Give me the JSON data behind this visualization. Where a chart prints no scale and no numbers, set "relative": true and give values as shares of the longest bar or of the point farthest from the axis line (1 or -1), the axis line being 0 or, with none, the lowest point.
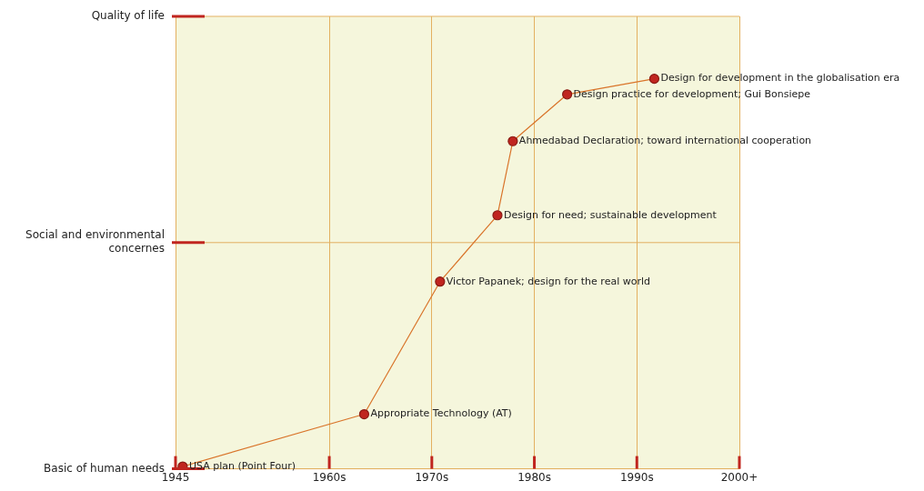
{
  "chart_data": {
    "type": "line",
    "relative": true,
    "x": [
      1945.7,
      1963.4,
      1970.8,
      1976.4,
      1977.9,
      1983.2,
      1991.7
    ],
    "series": [
      {
        "color": "#c0251f",
        "values": [
          0.006,
          0.14,
          0.48,
          0.65,
          0.84,
          0.96,
          1
        ]
      }
    ],
    "xlim": [
      1945,
      2000
    ],
    "xticks": [
      1945,
      {
        "value": 1960,
        "label": "1960s"
      },
      {
        "value": 1970,
        "label": "1970s"
      },
      {
        "value": 1980,
        "label": "1980s"
      },
      {
        "value": 1990,
        "label": "1990s"
      },
      {
        "value": 2000,
        "label": "2000+"
      }
    ],
    "grid": true,
    "legend": false,
    "marker": "circle",
    "line_style": "solid",
    "annotations": [
      "Quality of life",
      "Social and environmental concernes",
      "Basic of human needs",
      {
        "text": "USA plan (Point Four)",
        "x": 1945.7,
        "y": 0.006
      },
      {
        "text": "Appropriate Technology (AT)",
        "x": 1963.4,
        "y": 0.14
      },
      {
        "text": "Victor Papanek; design for the real world",
        "x": 1970.8,
        "y": 0.48
      },
      {
        "text": "Design for need; sustainable development",
        "x": 1976.4,
        "y": 0.65
      },
      {
        "text": "Ahmedabad Declaration; toward international cooperation",
        "x": 1977.9,
        "y": 0.84
      },
      {
        "text": "Design practice for development; Gui Bonsiepe",
        "x": 1983.2,
        "y": 0.96
      },
      {
        "text": "Design for development in the globalisation era",
        "x": 1991.7,
        "y": 1
      }
    ]
  }
}
